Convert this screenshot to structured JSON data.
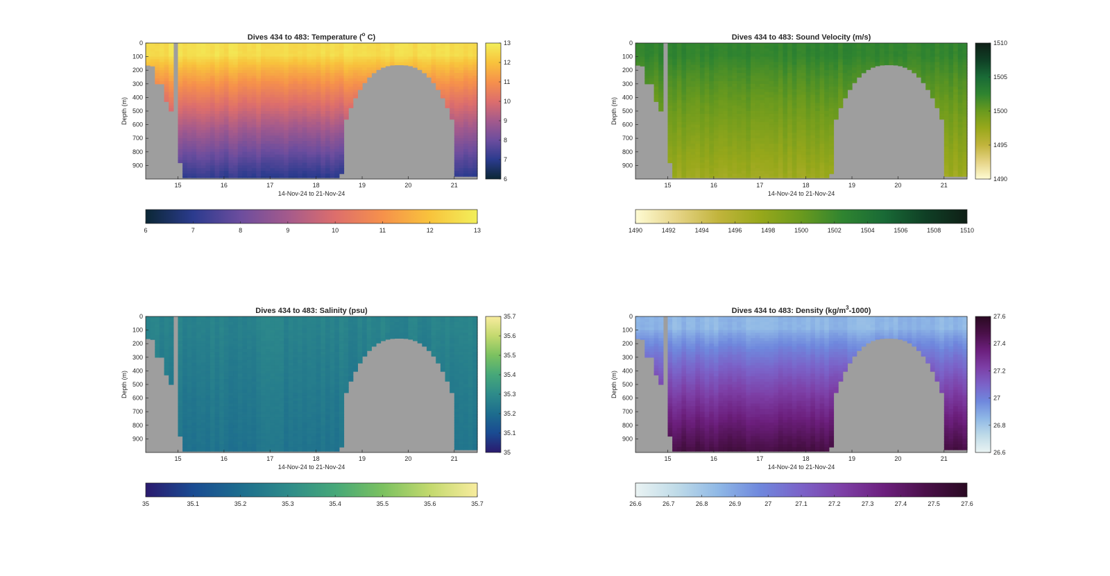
{
  "figure": {
    "background": "#ffffff",
    "mask_color": "#9e9e9e"
  },
  "chart_data": [
    {
      "id": "temperature",
      "type": "heatmap",
      "title": "Dives 434 to 483: Temperature (° C)",
      "title_main": "Dives 434 to 483: Temperature (",
      "title_sup": "o",
      "title_tail": " C)",
      "xlabel": "14-Nov-24 to 21-Nov-24",
      "ylabel": "Depth (m)",
      "x_ticks": [
        "15",
        "16",
        "17",
        "18",
        "19",
        "20",
        "21"
      ],
      "y_ticks": [
        "0",
        "100",
        "200",
        "300",
        "400",
        "500",
        "600",
        "700",
        "800",
        "900"
      ],
      "xlim": [
        14.3,
        21.5
      ],
      "ylim": [
        0,
        1000
      ],
      "y_reversed": true,
      "clim": [
        6,
        13
      ],
      "colormap": [
        "#0b2735",
        "#2b3b8e",
        "#6c4d9e",
        "#a45a8c",
        "#dd6e6c",
        "#f6914b",
        "#f8c33c",
        "#f2ef5a"
      ],
      "colorbar_side_ticks": [
        "6",
        "7",
        "8",
        "9",
        "10",
        "11",
        "12",
        "13"
      ],
      "colorbar_bottom_ticks": [
        "6",
        "7",
        "8",
        "9",
        "10",
        "11",
        "12",
        "13"
      ],
      "surface_value": 12.6,
      "deep_value": 7.0,
      "thermocline_depth": 150,
      "grid": false
    },
    {
      "id": "sound-velocity",
      "type": "heatmap",
      "title": "Dives 434 to 483: Sound Velocity (m/s)",
      "title_main": "Dives 434 to 483: Sound Velocity (m/s)",
      "title_sup": "",
      "title_tail": "",
      "xlabel": "14-Nov-24 to 21-Nov-24",
      "ylabel": "Depth (m)",
      "x_ticks": [
        "15",
        "16",
        "17",
        "18",
        "19",
        "20",
        "21"
      ],
      "y_ticks": [
        "0",
        "100",
        "200",
        "300",
        "400",
        "500",
        "600",
        "700",
        "800",
        "900"
      ],
      "xlim": [
        14.3,
        21.5
      ],
      "ylim": [
        0,
        1000
      ],
      "y_reversed": true,
      "clim": [
        1490,
        1510
      ],
      "colormap": [
        "#fefbd3",
        "#e6d487",
        "#c1b43c",
        "#98a81b",
        "#6a9a1e",
        "#2f8430",
        "#196a36",
        "#0f3f25",
        "#0f1f16"
      ],
      "colorbar_side_ticks": [
        "1490",
        "1495",
        "1500",
        "1505",
        "1510"
      ],
      "colorbar_bottom_ticks": [
        "1490",
        "1492",
        "1494",
        "1496",
        "1498",
        "1500",
        "1502",
        "1504",
        "1506",
        "1508",
        "1510"
      ],
      "surface_value": 1502.5,
      "deep_value": 1497.0,
      "thermocline_depth": 150,
      "grid": false
    },
    {
      "id": "salinity",
      "type": "heatmap",
      "title": "Dives 434 to 483: Salinity (psu)",
      "title_main": "Dives 434 to 483: Salinity (psu)",
      "title_sup": "",
      "title_tail": "",
      "xlabel": "14-Nov-24 to 21-Nov-24",
      "ylabel": "Depth (m)",
      "x_ticks": [
        "15",
        "16",
        "17",
        "18",
        "19",
        "20",
        "21"
      ],
      "y_ticks": [
        "0",
        "100",
        "200",
        "300",
        "400",
        "500",
        "600",
        "700",
        "800",
        "900"
      ],
      "xlim": [
        14.3,
        21.5
      ],
      "ylim": [
        0,
        1000
      ],
      "y_reversed": true,
      "clim": [
        35,
        35.7
      ],
      "colormap": [
        "#2a1a6e",
        "#1a4b92",
        "#1d6d8e",
        "#2e8b8a",
        "#46a879",
        "#7bc160",
        "#c3d96e",
        "#f8ec9e"
      ],
      "colorbar_side_ticks": [
        "35",
        "35.1",
        "35.2",
        "35.3",
        "35.4",
        "35.5",
        "35.6",
        "35.7"
      ],
      "colorbar_bottom_ticks": [
        "35",
        "35.1",
        "35.2",
        "35.3",
        "35.4",
        "35.5",
        "35.6",
        "35.7"
      ],
      "surface_value": 35.27,
      "deep_value": 35.22,
      "thermocline_depth": 150,
      "grid": false
    },
    {
      "id": "density",
      "type": "heatmap",
      "title": "Dives 434 to 483: Density (kg/m³-1000)",
      "title_main": "Dives 434 to 483: Density (kg/m",
      "title_sup": "3",
      "title_tail": "-1000)",
      "xlabel": "14-Nov-24 to 21-Nov-24",
      "ylabel": "Depth (m)",
      "x_ticks": [
        "15",
        "16",
        "17",
        "18",
        "19",
        "20",
        "21"
      ],
      "y_ticks": [
        "0",
        "100",
        "200",
        "300",
        "400",
        "500",
        "600",
        "700",
        "800",
        "900"
      ],
      "xlim": [
        14.3,
        21.5
      ],
      "ylim": [
        0,
        1000
      ],
      "y_reversed": true,
      "clim": [
        26.6,
        27.6
      ],
      "colormap": [
        "#eaf3f3",
        "#bfdbe8",
        "#8fb8e6",
        "#6f88dd",
        "#7b62c8",
        "#7d3fa6",
        "#6c1f7d",
        "#4a1049",
        "#2a0a22"
      ],
      "colorbar_side_ticks": [
        "26.6",
        "26.8",
        "27",
        "27.2",
        "27.4",
        "27.6"
      ],
      "colorbar_bottom_ticks": [
        "26.6",
        "26.7",
        "26.8",
        "26.9",
        "27",
        "27.1",
        "27.2",
        "27.3",
        "27.4",
        "27.5",
        "27.6"
      ],
      "surface_value": 26.85,
      "deep_value": 27.5,
      "thermocline_depth": 150,
      "grid": false
    }
  ]
}
